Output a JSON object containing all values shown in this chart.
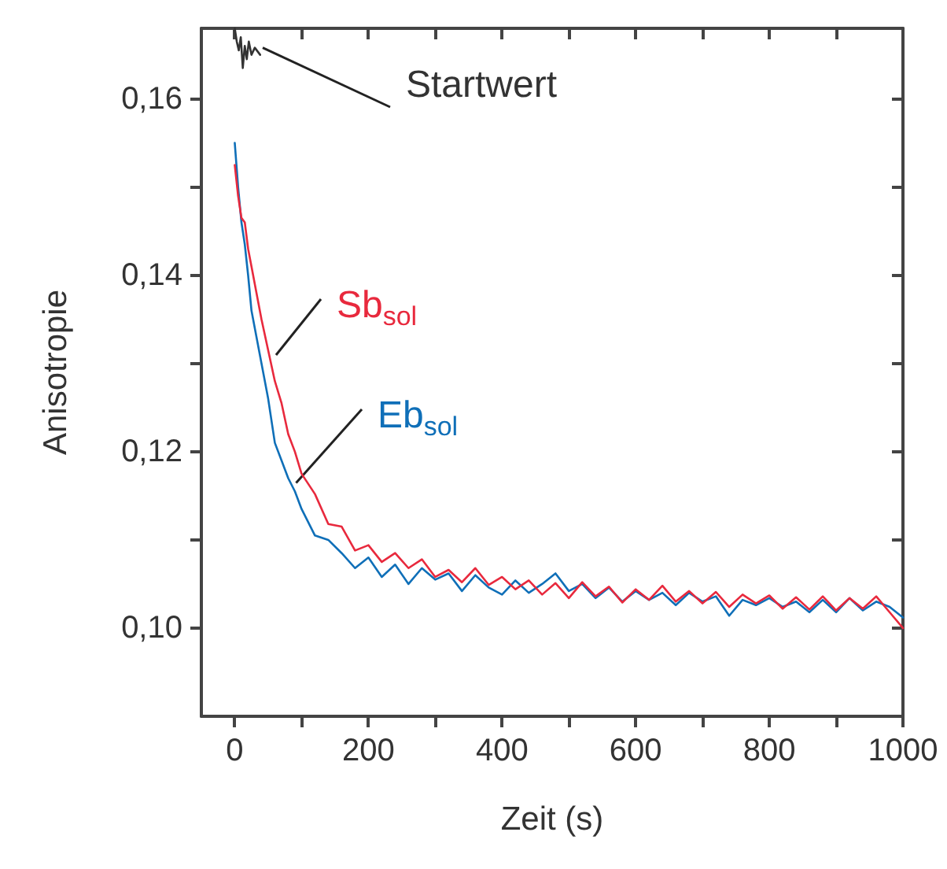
{
  "chart_data": {
    "type": "line",
    "xlabel": "Zeit (s)",
    "ylabel": "Anisotropie",
    "xlim": [
      -50,
      1000
    ],
    "xticks": [
      0,
      {
        "value": 100,
        "label": null
      },
      200,
      {
        "value": 300,
        "label": null
      },
      400,
      {
        "value": 500,
        "label": null
      },
      600,
      {
        "value": 700,
        "label": null
      },
      800,
      {
        "value": 900,
        "label": null
      },
      1000
    ],
    "ylim": [
      0.09,
      0.168
    ],
    "yticks": [
      {
        "value": 0.1,
        "label": "0,10"
      },
      {
        "value": 0.11,
        "label": null
      },
      {
        "value": 0.12,
        "label": "0,12"
      },
      {
        "value": 0.13,
        "label": null
      },
      {
        "value": 0.14,
        "label": "0,14"
      },
      {
        "value": 0.15,
        "label": null
      },
      {
        "value": 0.16,
        "label": "0,16"
      }
    ],
    "grid": false,
    "legend": false,
    "marker": "none",
    "line_style": "solid",
    "series": [
      {
        "name": "Startwert",
        "color": "#333333",
        "x": [
          0,
          3,
          6,
          9,
          12,
          15,
          18,
          21,
          25,
          30,
          38
        ],
        "values": [
          0.168,
          0.1665,
          0.1655,
          0.167,
          0.1635,
          0.166,
          0.1645,
          0.1665,
          0.165,
          0.1658,
          0.165
        ]
      },
      {
        "name": "Sb$_{sol}$",
        "color": "#e8293d",
        "x": [
          0,
          5,
          10,
          15,
          20,
          25,
          30,
          40,
          50,
          60,
          70,
          80,
          90,
          100,
          120,
          140,
          160,
          180,
          200,
          220,
          240,
          260,
          280,
          300,
          320,
          340,
          360,
          380,
          400,
          420,
          440,
          460,
          480,
          500,
          520,
          540,
          560,
          580,
          600,
          620,
          640,
          660,
          680,
          700,
          720,
          740,
          760,
          780,
          800,
          820,
          840,
          860,
          880,
          900,
          920,
          940,
          960,
          980,
          1000
        ],
        "values": [
          0.1525,
          0.149,
          0.1465,
          0.146,
          0.143,
          0.141,
          0.139,
          0.135,
          0.1315,
          0.128,
          0.1255,
          0.122,
          0.12,
          0.1175,
          0.1152,
          0.1118,
          0.1115,
          0.1088,
          0.1094,
          0.1075,
          0.1085,
          0.1068,
          0.1078,
          0.1058,
          0.1066,
          0.1052,
          0.1068,
          0.1049,
          0.1058,
          0.1044,
          0.1054,
          0.1038,
          0.1051,
          0.1034,
          0.1052,
          0.1036,
          0.1047,
          0.1029,
          0.1044,
          0.1032,
          0.1048,
          0.103,
          0.1042,
          0.1028,
          0.1041,
          0.1024,
          0.1038,
          0.1028,
          0.1037,
          0.1022,
          0.1035,
          0.1021,
          0.1036,
          0.102,
          0.1034,
          0.1022,
          0.1036,
          0.1018,
          0.1
        ]
      },
      {
        "name": "Eb$_{sol}$",
        "color": "#0f6fb8",
        "x": [
          0,
          5,
          10,
          15,
          20,
          25,
          30,
          40,
          50,
          60,
          70,
          80,
          90,
          100,
          120,
          140,
          160,
          180,
          200,
          220,
          240,
          260,
          280,
          300,
          320,
          340,
          360,
          380,
          400,
          420,
          440,
          460,
          480,
          500,
          520,
          540,
          560,
          580,
          600,
          620,
          640,
          660,
          680,
          700,
          720,
          740,
          760,
          780,
          800,
          820,
          840,
          860,
          880,
          900,
          920,
          940,
          960,
          980,
          1000
        ],
        "values": [
          0.155,
          0.15,
          0.146,
          0.1435,
          0.14,
          0.136,
          0.134,
          0.13,
          0.126,
          0.121,
          0.119,
          0.117,
          0.1155,
          0.1135,
          0.1105,
          0.11,
          0.1085,
          0.1068,
          0.108,
          0.1058,
          0.1072,
          0.105,
          0.1068,
          0.1055,
          0.1062,
          0.1042,
          0.106,
          0.1046,
          0.1038,
          0.1054,
          0.104,
          0.105,
          0.1062,
          0.1042,
          0.105,
          0.1034,
          0.1046,
          0.103,
          0.1042,
          0.1032,
          0.104,
          0.1026,
          0.104,
          0.103,
          0.1036,
          0.1014,
          0.1032,
          0.1026,
          0.1034,
          0.1024,
          0.103,
          0.1018,
          0.1032,
          0.1018,
          0.1034,
          0.102,
          0.103,
          0.1024,
          0.1012
        ]
      }
    ]
  }
}
